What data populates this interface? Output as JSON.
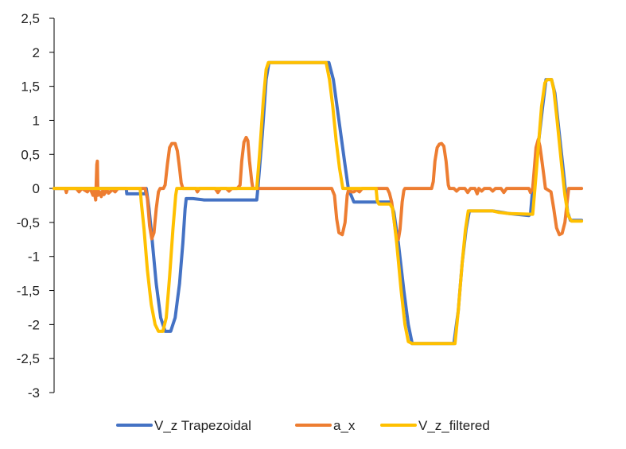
{
  "chart_data": {
    "type": "line",
    "title": "",
    "xlabel": "",
    "ylabel": "",
    "ylim": [
      -3,
      2.5
    ],
    "y_ticks": [
      2.5,
      2,
      1.5,
      1,
      0.5,
      0,
      -0.5,
      -1,
      -1.5,
      -2,
      -2.5,
      -3
    ],
    "y_tick_labels": [
      "2,5",
      "2",
      "1,5",
      "1",
      "0,5",
      "0",
      "-0,5",
      "-1",
      "-1,5",
      "-2",
      "-2,5",
      "-3"
    ],
    "xlim": [
      0,
      1000
    ],
    "grid": false,
    "legend_position": "bottom",
    "series": [
      {
        "name": "V_z Trapezoidal",
        "color": "#4472C4",
        "points": [
          [
            0,
            0
          ],
          [
            130,
            0
          ],
          [
            131,
            -0.08
          ],
          [
            164,
            -0.08
          ],
          [
            166,
            0
          ],
          [
            171,
            -0.3
          ],
          [
            176,
            -0.7
          ],
          [
            184,
            -1.4
          ],
          [
            192,
            -1.9
          ],
          [
            200,
            -2.1
          ],
          [
            210,
            -2.1
          ],
          [
            218,
            -1.9
          ],
          [
            226,
            -1.4
          ],
          [
            232,
            -0.8
          ],
          [
            236,
            -0.3
          ],
          [
            238,
            -0.15
          ],
          [
            250,
            -0.15
          ],
          [
            270,
            -0.17
          ],
          [
            330,
            -0.17
          ],
          [
            365,
            -0.17
          ],
          [
            367,
            0
          ],
          [
            375,
            0.8
          ],
          [
            382,
            1.6
          ],
          [
            387,
            1.85
          ],
          [
            495,
            1.85
          ],
          [
            503,
            1.6
          ],
          [
            513,
            1.0
          ],
          [
            523,
            0.4
          ],
          [
            530,
            0
          ],
          [
            540,
            -0.2
          ],
          [
            600,
            -0.2
          ],
          [
            604,
            -0.2
          ],
          [
            606,
            -0.2
          ],
          [
            612,
            -0.35
          ],
          [
            620,
            -0.8
          ],
          [
            630,
            -1.5
          ],
          [
            638,
            -2.0
          ],
          [
            645,
            -2.28
          ],
          [
            720,
            -2.28
          ],
          [
            728,
            -1.8
          ],
          [
            735,
            -1.1
          ],
          [
            742,
            -0.6
          ],
          [
            748,
            -0.33
          ],
          [
            790,
            -0.33
          ],
          [
            820,
            -0.37
          ],
          [
            855,
            -0.4
          ],
          [
            858,
            -0.38
          ],
          [
            862,
            0
          ],
          [
            870,
            0.5
          ],
          [
            880,
            1.2
          ],
          [
            886,
            1.6
          ],
          [
            896,
            1.6
          ],
          [
            902,
            1.4
          ],
          [
            910,
            0.8
          ],
          [
            918,
            0.2
          ],
          [
            925,
            -0.35
          ],
          [
            930,
            -0.47
          ],
          [
            950,
            -0.47
          ]
        ]
      },
      {
        "name": "a_x",
        "color": "#ED7D31",
        "points": [
          [
            0,
            0
          ],
          [
            20,
            0
          ],
          [
            22,
            -0.06
          ],
          [
            24,
            0
          ],
          [
            40,
            0
          ],
          [
            45,
            -0.05
          ],
          [
            50,
            0
          ],
          [
            60,
            -0.05
          ],
          [
            65,
            0
          ],
          [
            70,
            -0.1
          ],
          [
            72,
            -0.04
          ],
          [
            75,
            -0.17
          ],
          [
            77,
            0.35
          ],
          [
            78,
            0.4
          ],
          [
            79,
            -0.1
          ],
          [
            82,
            -0.05
          ],
          [
            85,
            -0.12
          ],
          [
            88,
            -0.02
          ],
          [
            90,
            -0.09
          ],
          [
            95,
            -0.02
          ],
          [
            98,
            -0.07
          ],
          [
            105,
            -0.02
          ],
          [
            110,
            -0.05
          ],
          [
            115,
            0
          ],
          [
            140,
            0
          ],
          [
            155,
            0
          ],
          [
            164,
            0
          ],
          [
            168,
            -0.15
          ],
          [
            172,
            -0.55
          ],
          [
            176,
            -0.74
          ],
          [
            180,
            -0.65
          ],
          [
            184,
            -0.3
          ],
          [
            188,
            -0.05
          ],
          [
            191,
            0
          ],
          [
            197,
            0
          ],
          [
            200,
            0.05
          ],
          [
            204,
            0.35
          ],
          [
            208,
            0.6
          ],
          [
            212,
            0.66
          ],
          [
            218,
            0.66
          ],
          [
            222,
            0.55
          ],
          [
            226,
            0.3
          ],
          [
            229,
            0.08
          ],
          [
            232,
            0
          ],
          [
            255,
            0
          ],
          [
            258,
            -0.05
          ],
          [
            262,
            0
          ],
          [
            290,
            0
          ],
          [
            295,
            -0.06
          ],
          [
            300,
            0
          ],
          [
            310,
            0
          ],
          [
            315,
            -0.04
          ],
          [
            320,
            0
          ],
          [
            326,
            0
          ],
          [
            330,
            0
          ],
          [
            335,
            0.05
          ],
          [
            338,
            0.4
          ],
          [
            342,
            0.68
          ],
          [
            346,
            0.75
          ],
          [
            349,
            0.7
          ],
          [
            352,
            0.4
          ],
          [
            356,
            0.1
          ],
          [
            358,
            0
          ],
          [
            500,
            0
          ],
          [
            505,
            -0.1
          ],
          [
            509,
            -0.45
          ],
          [
            513,
            -0.65
          ],
          [
            519,
            -0.68
          ],
          [
            524,
            -0.5
          ],
          [
            528,
            -0.1
          ],
          [
            531,
            0
          ],
          [
            535,
            -0.05
          ],
          [
            540,
            -0.05
          ],
          [
            545,
            -0.02
          ],
          [
            550,
            -0.05
          ],
          [
            555,
            0
          ],
          [
            595,
            0
          ],
          [
            600,
            0
          ],
          [
            604,
            -0.07
          ],
          [
            608,
            -0.2
          ],
          [
            612,
            -0.45
          ],
          [
            616,
            -0.7
          ],
          [
            620,
            -0.75
          ],
          [
            623,
            -0.6
          ],
          [
            627,
            -0.2
          ],
          [
            630,
            -0.03
          ],
          [
            632,
            0
          ],
          [
            680,
            0
          ],
          [
            683,
            0.1
          ],
          [
            686,
            0.4
          ],
          [
            690,
            0.6
          ],
          [
            694,
            0.65
          ],
          [
            698,
            0.66
          ],
          [
            702,
            0.62
          ],
          [
            706,
            0.4
          ],
          [
            710,
            0.05
          ],
          [
            712,
            0
          ],
          [
            720,
            0
          ],
          [
            725,
            -0.04
          ],
          [
            730,
            0
          ],
          [
            740,
            0
          ],
          [
            745,
            -0.06
          ],
          [
            750,
            0
          ],
          [
            758,
            0
          ],
          [
            762,
            -0.08
          ],
          [
            765,
            0
          ],
          [
            770,
            -0.04
          ],
          [
            775,
            0
          ],
          [
            785,
            0
          ],
          [
            790,
            -0.04
          ],
          [
            795,
            0
          ],
          [
            805,
            0
          ],
          [
            810,
            -0.06
          ],
          [
            815,
            0
          ],
          [
            855,
            0
          ],
          [
            858,
            -0.06
          ],
          [
            862,
            0
          ],
          [
            865,
            0.3
          ],
          [
            868,
            0.6
          ],
          [
            872,
            0.72
          ],
          [
            875,
            0.62
          ],
          [
            878,
            0.45
          ],
          [
            882,
            0.2
          ],
          [
            885,
            0
          ],
          [
            895,
            -0.05
          ],
          [
            900,
            -0.3
          ],
          [
            905,
            -0.58
          ],
          [
            910,
            -0.68
          ],
          [
            915,
            -0.66
          ],
          [
            920,
            -0.5
          ],
          [
            924,
            -0.2
          ],
          [
            927,
            0
          ],
          [
            950,
            0
          ]
        ]
      },
      {
        "name": "V_z_filtered",
        "color": "#FFC000",
        "points": [
          [
            0,
            0
          ],
          [
            130,
            0
          ],
          [
            155,
            0
          ],
          [
            157,
            -0.2
          ],
          [
            162,
            -0.6
          ],
          [
            168,
            -1.2
          ],
          [
            175,
            -1.7
          ],
          [
            182,
            -2.0
          ],
          [
            188,
            -2.1
          ],
          [
            196,
            -2.1
          ],
          [
            202,
            -1.9
          ],
          [
            208,
            -1.3
          ],
          [
            214,
            -0.6
          ],
          [
            219,
            -0.1
          ],
          [
            221,
            0
          ],
          [
            365,
            0
          ],
          [
            370,
            0.5
          ],
          [
            377,
            1.3
          ],
          [
            382,
            1.75
          ],
          [
            386,
            1.85
          ],
          [
            490,
            1.85
          ],
          [
            496,
            1.6
          ],
          [
            502,
            1.2
          ],
          [
            508,
            0.7
          ],
          [
            514,
            0.3
          ],
          [
            520,
            0
          ],
          [
            580,
            0
          ],
          [
            582,
            -0.18
          ],
          [
            585,
            -0.23
          ],
          [
            605,
            -0.23
          ],
          [
            610,
            -0.3
          ],
          [
            617,
            -0.8
          ],
          [
            625,
            -1.5
          ],
          [
            632,
            -2.0
          ],
          [
            638,
            -2.25
          ],
          [
            645,
            -2.28
          ],
          [
            722,
            -2.28
          ],
          [
            728,
            -1.8
          ],
          [
            735,
            -1.1
          ],
          [
            741,
            -0.6
          ],
          [
            746,
            -0.33
          ],
          [
            790,
            -0.33
          ],
          [
            800,
            -0.35
          ],
          [
            820,
            -0.37
          ],
          [
            862,
            -0.38
          ],
          [
            866,
            0
          ],
          [
            872,
            0.6
          ],
          [
            878,
            1.2
          ],
          [
            884,
            1.55
          ],
          [
            888,
            1.6
          ],
          [
            896,
            1.6
          ],
          [
            900,
            1.45
          ],
          [
            906,
            1.0
          ],
          [
            914,
            0.35
          ],
          [
            920,
            -0.1
          ],
          [
            926,
            -0.4
          ],
          [
            932,
            -0.48
          ],
          [
            950,
            -0.48
          ]
        ]
      }
    ]
  }
}
